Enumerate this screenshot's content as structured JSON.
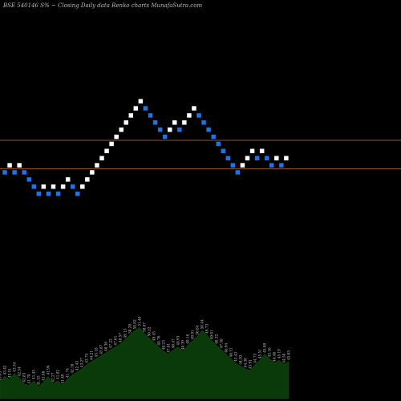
{
  "chart_data": {
    "type": "renko",
    "title": "BSE 540146  S% ~ Closing Daily data  Renko  charts MunafaSutra.com",
    "background": "#000000",
    "colors": {
      "up_brick": "#ffffff",
      "down_brick": "#1e74e6",
      "reference_line": "#a0522d",
      "volume_area": "#0a3a0a"
    },
    "reference_lines": [
      47.0,
      43.8
    ],
    "brick_size": 0.8,
    "bricks": [
      {
        "value": 43.4,
        "dir": "down"
      },
      {
        "value": 44.2,
        "dir": "up"
      },
      {
        "value": 43.4,
        "dir": "down"
      },
      {
        "value": 44.2,
        "dir": "up"
      },
      {
        "value": 43.4,
        "dir": "down"
      },
      {
        "value": 42.6,
        "dir": "down"
      },
      {
        "value": 41.8,
        "dir": "down"
      },
      {
        "value": 41.0,
        "dir": "down"
      },
      {
        "value": 41.8,
        "dir": "up"
      },
      {
        "value": 41.0,
        "dir": "down"
      },
      {
        "value": 41.8,
        "dir": "up"
      },
      {
        "value": 41.0,
        "dir": "down"
      },
      {
        "value": 41.8,
        "dir": "up"
      },
      {
        "value": 42.6,
        "dir": "up"
      },
      {
        "value": 41.8,
        "dir": "down"
      },
      {
        "value": 41.0,
        "dir": "down"
      },
      {
        "value": 41.8,
        "dir": "up"
      },
      {
        "value": 42.6,
        "dir": "up"
      },
      {
        "value": 43.4,
        "dir": "up"
      },
      {
        "value": 44.2,
        "dir": "up"
      },
      {
        "value": 45.0,
        "dir": "up"
      },
      {
        "value": 45.8,
        "dir": "up"
      },
      {
        "value": 46.6,
        "dir": "up"
      },
      {
        "value": 47.4,
        "dir": "up"
      },
      {
        "value": 48.2,
        "dir": "up"
      },
      {
        "value": 49.0,
        "dir": "up"
      },
      {
        "value": 49.8,
        "dir": "up"
      },
      {
        "value": 50.6,
        "dir": "up"
      },
      {
        "value": 51.4,
        "dir": "up"
      },
      {
        "value": 50.6,
        "dir": "down"
      },
      {
        "value": 49.8,
        "dir": "down"
      },
      {
        "value": 49.0,
        "dir": "down"
      },
      {
        "value": 48.2,
        "dir": "down"
      },
      {
        "value": 47.4,
        "dir": "down"
      },
      {
        "value": 48.2,
        "dir": "up"
      },
      {
        "value": 49.0,
        "dir": "up"
      },
      {
        "value": 48.2,
        "dir": "down"
      },
      {
        "value": 49.0,
        "dir": "up"
      },
      {
        "value": 49.8,
        "dir": "up"
      },
      {
        "value": 50.6,
        "dir": "up"
      },
      {
        "value": 49.8,
        "dir": "down"
      },
      {
        "value": 49.0,
        "dir": "down"
      },
      {
        "value": 48.2,
        "dir": "down"
      },
      {
        "value": 47.4,
        "dir": "down"
      },
      {
        "value": 46.6,
        "dir": "down"
      },
      {
        "value": 45.8,
        "dir": "down"
      },
      {
        "value": 45.0,
        "dir": "down"
      },
      {
        "value": 44.2,
        "dir": "down"
      },
      {
        "value": 43.4,
        "dir": "down"
      },
      {
        "value": 44.2,
        "dir": "up"
      },
      {
        "value": 45.0,
        "dir": "up"
      },
      {
        "value": 45.8,
        "dir": "up"
      },
      {
        "value": 45.0,
        "dir": "down"
      },
      {
        "value": 45.8,
        "dir": "up"
      },
      {
        "value": 45.0,
        "dir": "down"
      },
      {
        "value": 44.2,
        "dir": "down"
      },
      {
        "value": 45.0,
        "dir": "up"
      },
      {
        "value": 44.2,
        "dir": "down"
      },
      {
        "value": 45.0,
        "dir": "up"
      }
    ],
    "volume_labels": [
      "43.83",
      "43.42",
      "43.51",
      "43.34",
      "42.54",
      "42.83",
      "41.78",
      "41.45",
      "41.53",
      "41.48",
      "41.94",
      "42.27",
      "41.82",
      "41.49",
      "41.74",
      "42.18",
      "42.43",
      "43.27",
      "43.74",
      "44.21",
      "45.18",
      "45.87",
      "46.36",
      "47.22",
      "47.61",
      "48.57",
      "49.13",
      "50.28",
      "50.82",
      "51.46",
      "50.67",
      "50.22",
      "49.45",
      "48.76",
      "48.23",
      "47.81",
      "48.47",
      "48.93",
      "48.39",
      "49.16",
      "49.91",
      "50.64",
      "50.44",
      "49.73",
      "49.01",
      "48.32",
      "47.58",
      "46.94",
      "46.11",
      "45.43",
      "44.92",
      "44.38",
      "43.91",
      "44.73",
      "45.51",
      "45.89",
      "45.16",
      "44.48",
      "45.19",
      "44.58",
      "45.05"
    ],
    "volume_heights": [
      0.22,
      0.3,
      0.26,
      0.34,
      0.28,
      0.2,
      0.18,
      0.24,
      0.16,
      0.22,
      0.3,
      0.2,
      0.24,
      0.18,
      0.26,
      0.32,
      0.36,
      0.4,
      0.46,
      0.5,
      0.54,
      0.58,
      0.62,
      0.66,
      0.7,
      0.74,
      0.8,
      0.86,
      0.92,
      0.96,
      0.88,
      0.82,
      0.76,
      0.7,
      0.64,
      0.6,
      0.66,
      0.7,
      0.64,
      0.72,
      0.78,
      0.84,
      0.92,
      0.86,
      0.78,
      0.72,
      0.66,
      0.6,
      0.54,
      0.48,
      0.44,
      0.4,
      0.38,
      0.46,
      0.52,
      0.6,
      0.54,
      0.48,
      0.52,
      0.46,
      0.5
    ]
  }
}
